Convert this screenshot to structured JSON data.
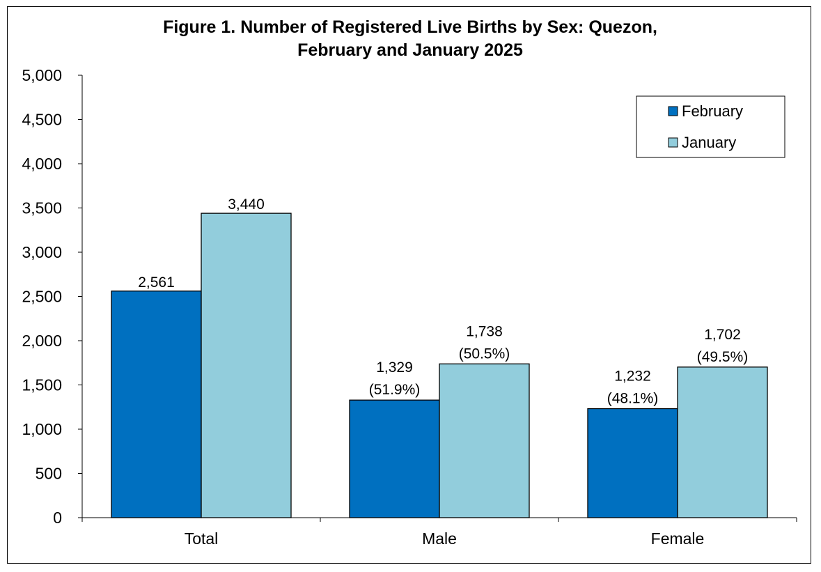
{
  "chart_data": {
    "type": "bar",
    "title": "Figure 1. Number of Registered Live Births by Sex: Quezon,",
    "subtitle": "February and January 2025",
    "xlabel": "",
    "ylabel": "",
    "categories": [
      "Total",
      "Male",
      "Female"
    ],
    "series": [
      {
        "name": "February",
        "color": "#0070C0",
        "values": [
          2561,
          1329,
          1232
        ],
        "value_labels": [
          "2,561",
          "1,329",
          "1,232"
        ],
        "pct_labels": [
          "",
          "(51.9%)",
          "(48.1%)"
        ]
      },
      {
        "name": "January",
        "color": "#92CDDC",
        "values": [
          3440,
          1738,
          1702
        ],
        "value_labels": [
          "3,440",
          "1,738",
          "1,702"
        ],
        "pct_labels": [
          "",
          "(50.5%)",
          "(49.5%)"
        ]
      }
    ],
    "ylim": [
      0,
      5000
    ],
    "yticks": [
      0,
      500,
      1000,
      1500,
      2000,
      2500,
      3000,
      3500,
      4000,
      4500,
      5000
    ],
    "ytick_labels": [
      "0",
      "500",
      "1,000",
      "1,500",
      "2,000",
      "2,500",
      "3,000",
      "3,500",
      "4,000",
      "4,500",
      "5,000"
    ],
    "grid": false,
    "legend_position": "top-right"
  }
}
